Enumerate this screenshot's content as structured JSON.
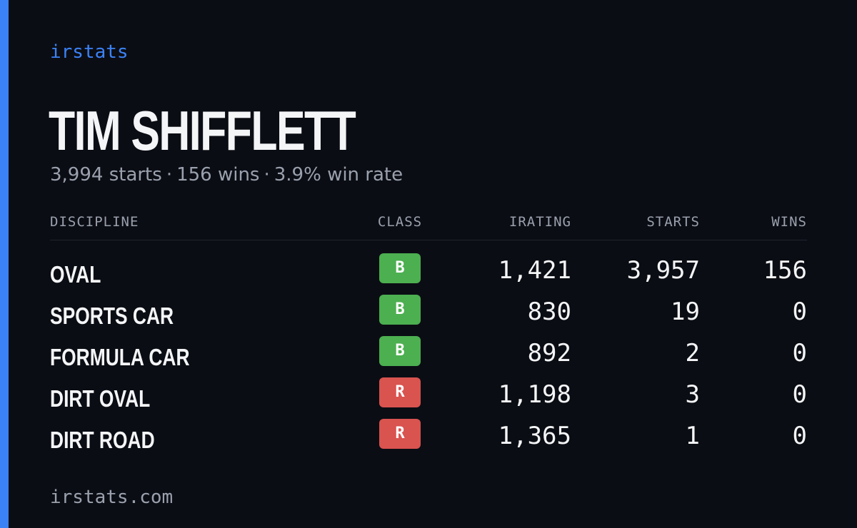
{
  "colors": {
    "accent": "#3b82f6",
    "background": "#0b0d14",
    "muted": "#9aa1ad",
    "class_b": "#4caf50",
    "class_r": "#d9534f"
  },
  "brand": "irstats",
  "driver": {
    "name": "TIM SHIFFLETT",
    "summary": {
      "starts": "3,994 starts",
      "wins": "156 wins",
      "win_rate": "3.9% win rate",
      "separator": "·"
    }
  },
  "table": {
    "headers": {
      "discipline": "DISCIPLINE",
      "class": "CLASS",
      "irating": "IRATING",
      "starts": "STARTS",
      "wins": "WINS"
    },
    "rows": [
      {
        "discipline": "OVAL",
        "class": "B",
        "class_color": "#4caf50",
        "irating": "1,421",
        "starts": "3,957",
        "wins": "156"
      },
      {
        "discipline": "SPORTS CAR",
        "class": "B",
        "class_color": "#4caf50",
        "irating": "830",
        "starts": "19",
        "wins": "0"
      },
      {
        "discipline": "FORMULA CAR",
        "class": "B",
        "class_color": "#4caf50",
        "irating": "892",
        "starts": "2",
        "wins": "0"
      },
      {
        "discipline": "DIRT OVAL",
        "class": "R",
        "class_color": "#d9534f",
        "irating": "1,198",
        "starts": "3",
        "wins": "0"
      },
      {
        "discipline": "DIRT ROAD",
        "class": "R",
        "class_color": "#d9534f",
        "irating": "1,365",
        "starts": "1",
        "wins": "0"
      }
    ]
  },
  "footer": "irstats.com"
}
